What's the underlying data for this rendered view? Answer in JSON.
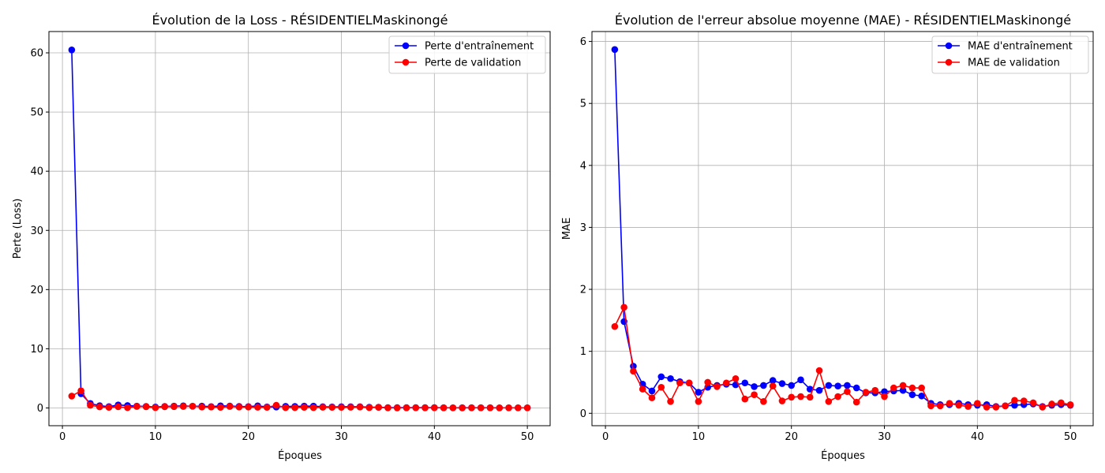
{
  "chart_data": [
    {
      "type": "line",
      "title": "Évolution de la Loss - RÉSIDENTIELMaskinongé",
      "xlabel": "Époques",
      "ylabel": "Perte (Loss)",
      "xlim": [
        -1.45,
        52.45
      ],
      "ylim": [
        -3.0,
        63.6
      ],
      "xticks": [
        0,
        10,
        20,
        30,
        40,
        50
      ],
      "yticks": [
        0,
        10,
        20,
        30,
        40,
        50,
        60
      ],
      "grid": true,
      "legend_position": "top-right",
      "x": [
        1,
        2,
        3,
        4,
        5,
        6,
        7,
        8,
        9,
        10,
        11,
        12,
        13,
        14,
        15,
        16,
        17,
        18,
        19,
        20,
        21,
        22,
        23,
        24,
        25,
        26,
        27,
        28,
        29,
        30,
        31,
        32,
        33,
        34,
        35,
        36,
        37,
        38,
        39,
        40,
        41,
        42,
        43,
        44,
        45,
        46,
        47,
        48,
        49,
        50
      ],
      "series": [
        {
          "name": "Perte d'entraînement",
          "color": "#0000ff",
          "values": [
            60.5,
            2.4,
            0.75,
            0.38,
            0.22,
            0.5,
            0.4,
            0.3,
            0.25,
            0.15,
            0.25,
            0.3,
            0.35,
            0.28,
            0.3,
            0.22,
            0.35,
            0.32,
            0.25,
            0.22,
            0.35,
            0.18,
            0.15,
            0.28,
            0.25,
            0.3,
            0.3,
            0.2,
            0.18,
            0.2,
            0.2,
            0.2,
            0.12,
            0.12,
            0.06,
            0.06,
            0.05,
            0.06,
            0.05,
            0.05,
            0.04,
            0.03,
            0.04,
            0.04,
            0.04,
            0.04,
            0.03,
            0.03,
            0.03,
            0.03
          ]
        },
        {
          "name": "Perte de validation",
          "color": "#ff0000",
          "values": [
            2.0,
            2.9,
            0.45,
            0.18,
            0.1,
            0.2,
            0.05,
            0.25,
            0.2,
            0.05,
            0.2,
            0.22,
            0.25,
            0.3,
            0.15,
            0.15,
            0.1,
            0.25,
            0.15,
            0.15,
            0.12,
            0.1,
            0.45,
            0.05,
            0.05,
            0.1,
            0.05,
            0.12,
            0.1,
            0.1,
            0.12,
            0.15,
            0.05,
            0.1,
            0.02,
            0.01,
            0.02,
            0.03,
            0.02,
            0.03,
            0.02,
            0.02,
            0.01,
            0.02,
            0.02,
            0.02,
            0.01,
            0.02,
            0.02,
            0.02
          ]
        }
      ]
    },
    {
      "type": "line",
      "title": "Évolution de l'erreur absolue moyenne (MAE) - RÉSIDENTIELMaskinongé",
      "xlabel": "Époques",
      "ylabel": "MAE",
      "xlim": [
        -1.45,
        52.45
      ],
      "ylim": [
        -0.2,
        6.16
      ],
      "xticks": [
        0,
        10,
        20,
        30,
        40,
        50
      ],
      "yticks": [
        0,
        1,
        2,
        3,
        4,
        5,
        6
      ],
      "grid": true,
      "legend_position": "top-right",
      "x": [
        1,
        2,
        3,
        4,
        5,
        6,
        7,
        8,
        9,
        10,
        11,
        12,
        13,
        14,
        15,
        16,
        17,
        18,
        19,
        20,
        21,
        22,
        23,
        24,
        25,
        26,
        27,
        28,
        29,
        30,
        31,
        32,
        33,
        34,
        35,
        36,
        37,
        38,
        39,
        40,
        41,
        42,
        43,
        44,
        45,
        46,
        47,
        48,
        49,
        50
      ],
      "series": [
        {
          "name": "MAE d'entraînement",
          "color": "#0000ff",
          "values": [
            5.87,
            1.48,
            0.76,
            0.47,
            0.36,
            0.59,
            0.56,
            0.51,
            0.49,
            0.34,
            0.42,
            0.45,
            0.47,
            0.46,
            0.49,
            0.43,
            0.45,
            0.53,
            0.48,
            0.45,
            0.54,
            0.39,
            0.37,
            0.45,
            0.44,
            0.45,
            0.41,
            0.33,
            0.33,
            0.35,
            0.36,
            0.37,
            0.3,
            0.28,
            0.16,
            0.14,
            0.14,
            0.16,
            0.14,
            0.13,
            0.14,
            0.11,
            0.12,
            0.13,
            0.14,
            0.15,
            0.11,
            0.13,
            0.14,
            0.13
          ]
        },
        {
          "name": "MAE de validation",
          "color": "#ff0000",
          "values": [
            1.4,
            1.71,
            0.68,
            0.39,
            0.25,
            0.42,
            0.19,
            0.49,
            0.49,
            0.19,
            0.5,
            0.43,
            0.49,
            0.56,
            0.23,
            0.3,
            0.19,
            0.44,
            0.2,
            0.26,
            0.27,
            0.26,
            0.69,
            0.19,
            0.27,
            0.35,
            0.18,
            0.34,
            0.37,
            0.27,
            0.41,
            0.45,
            0.41,
            0.41,
            0.12,
            0.12,
            0.16,
            0.13,
            0.11,
            0.16,
            0.1,
            0.1,
            0.12,
            0.21,
            0.2,
            0.17,
            0.1,
            0.15,
            0.17,
            0.14
          ]
        }
      ]
    }
  ]
}
